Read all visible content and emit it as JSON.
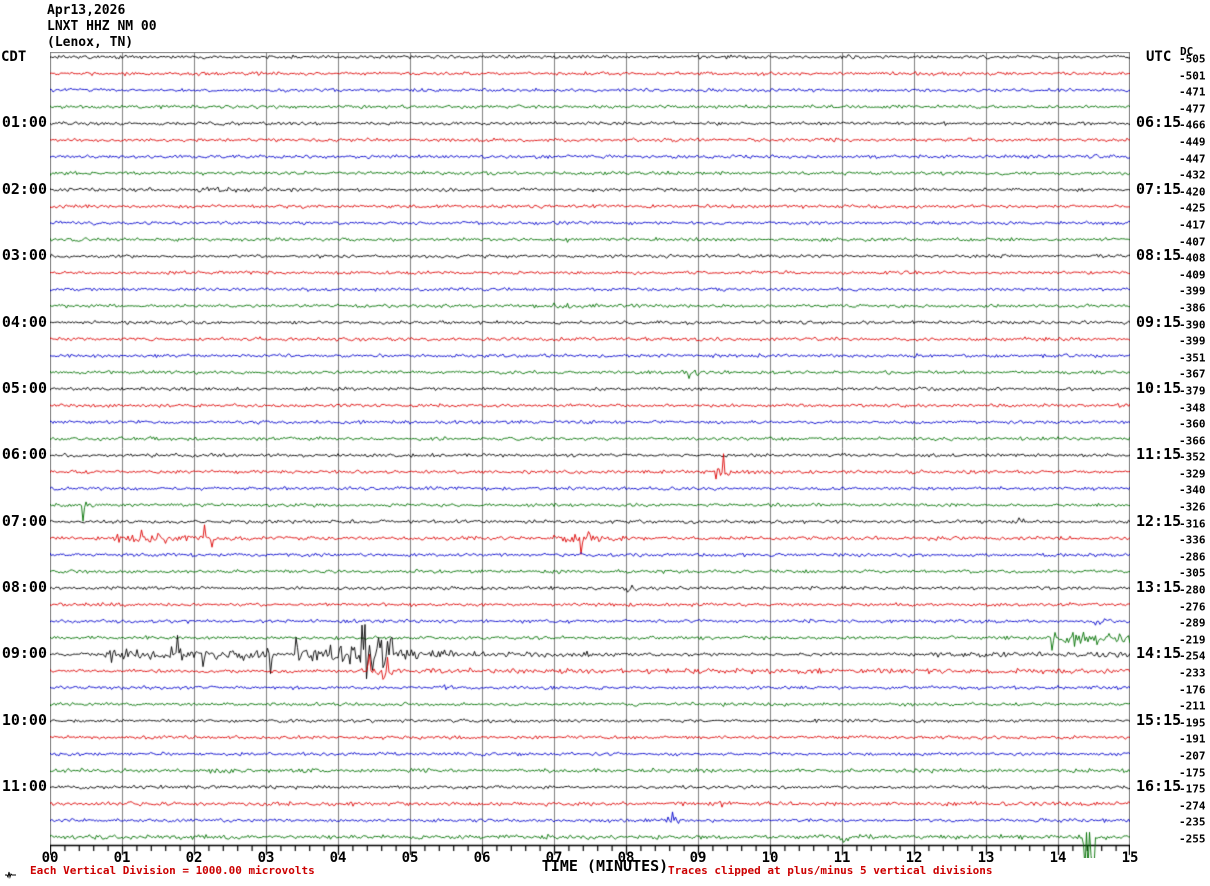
{
  "header": {
    "date": "Apr13,2026",
    "station": "LNXT HHZ NM 00",
    "location": "(Lenox, TN)"
  },
  "axes": {
    "left_header": "CDT",
    "right_header": "UTC",
    "dc_header": "DC",
    "bottom_title": "TIME (MINUTES)",
    "minute_labels": [
      "00",
      "01",
      "02",
      "03",
      "04",
      "05",
      "06",
      "07",
      "08",
      "09",
      "10",
      "11",
      "12",
      "13",
      "14",
      "15"
    ],
    "minor_ticks_per_minute": 5
  },
  "footer": {
    "scale_note": "Each Vertical Division = 1000.00 microvolts",
    "clip_note": "Traces clipped at plus/minus 5 vertical divisions"
  },
  "colors": {
    "black": "#000000",
    "red": "#dd0000",
    "blue": "#0000cc",
    "green": "#007000",
    "grid": "#808080",
    "axis_line": "#000000",
    "annotation_red": "#cc0000",
    "background": "#ffffff"
  },
  "chart_data": {
    "type": "line",
    "subtype": "helicorder-seismogram",
    "title": "LNXT HHZ NM 00 (Lenox, TN) Apr13,2026",
    "xlabel": "TIME (MINUTES)",
    "x_range_minutes": [
      0,
      15
    ],
    "minutes_per_row": 15,
    "rows_total": 48,
    "color_cycle": [
      "black",
      "red",
      "blue",
      "green"
    ],
    "rows": [
      {
        "c": "black",
        "dc": -505
      },
      {
        "c": "red",
        "dc": -501
      },
      {
        "c": "blue",
        "dc": -471
      },
      {
        "c": "green",
        "dc": -477
      },
      {
        "c": "black",
        "dc": -466,
        "cdt": "01:00",
        "utc": "06:15"
      },
      {
        "c": "red",
        "dc": -449
      },
      {
        "c": "blue",
        "dc": -447
      },
      {
        "c": "green",
        "dc": -432
      },
      {
        "c": "black",
        "dc": -420,
        "cdt": "02:00",
        "utc": "07:15",
        "ev": [
          [
            2.0,
            3.2,
            1.6
          ]
        ]
      },
      {
        "c": "red",
        "dc": -425
      },
      {
        "c": "blue",
        "dc": -417
      },
      {
        "c": "green",
        "dc": -407,
        "ev": [
          [
            7.05,
            7.2,
            2.0
          ]
        ]
      },
      {
        "c": "black",
        "dc": -408,
        "cdt": "03:00",
        "utc": "08:15"
      },
      {
        "c": "red",
        "dc": -409
      },
      {
        "c": "blue",
        "dc": -399
      },
      {
        "c": "green",
        "dc": -386,
        "ev": [
          [
            7.0,
            7.25,
            2.5
          ]
        ]
      },
      {
        "c": "black",
        "dc": -390,
        "cdt": "04:00",
        "utc": "09:15"
      },
      {
        "c": "red",
        "dc": -399,
        "a": 1.1
      },
      {
        "c": "blue",
        "dc": -351
      },
      {
        "c": "green",
        "dc": -367,
        "ev": [
          [
            8.75,
            9.0,
            2.2
          ]
        ]
      },
      {
        "c": "black",
        "dc": -379,
        "cdt": "05:00",
        "utc": "10:15"
      },
      {
        "c": "red",
        "dc": -348
      },
      {
        "c": "blue",
        "dc": -360
      },
      {
        "c": "green",
        "dc": -366
      },
      {
        "c": "black",
        "dc": -352,
        "cdt": "06:00",
        "utc": "11:15"
      },
      {
        "c": "red",
        "dc": -329,
        "ev": [
          [
            9.25,
            9.45,
            2.2
          ]
        ]
      },
      {
        "c": "blue",
        "dc": -340
      },
      {
        "c": "green",
        "dc": -326,
        "ev": [
          [
            0.45,
            0.62,
            2.5
          ]
        ]
      },
      {
        "c": "black",
        "dc": -316,
        "cdt": "07:00",
        "utc": "12:15",
        "ev": [
          [
            13.4,
            13.6,
            1.8
          ]
        ]
      },
      {
        "c": "red",
        "dc": -336,
        "a": 1.1,
        "ev": [
          [
            0.9,
            2.3,
            2.0
          ],
          [
            7.0,
            8.0,
            2.6
          ]
        ]
      },
      {
        "c": "blue",
        "dc": -286
      },
      {
        "c": "green",
        "dc": -305
      },
      {
        "c": "black",
        "dc": -280,
        "cdt": "08:00",
        "utc": "13:15",
        "ev": [
          [
            7.9,
            8.15,
            2.0
          ]
        ]
      },
      {
        "c": "red",
        "dc": -276
      },
      {
        "c": "blue",
        "dc": -289,
        "ev": [
          [
            14.5,
            14.65,
            2.2
          ]
        ]
      },
      {
        "c": "green",
        "dc": -219,
        "ev": [
          [
            13.9,
            15.0,
            3.5
          ]
        ]
      },
      {
        "c": "black",
        "dc": -254,
        "cdt": "09:00",
        "utc": "14:15",
        "ev": [
          [
            0.75,
            3.1,
            3.0
          ],
          [
            3.4,
            4.1,
            4.5
          ],
          [
            4.15,
            4.75,
            7.0
          ],
          [
            4.8,
            5.6,
            3.0
          ],
          [
            5.6,
            8.0,
            1.5
          ],
          [
            12.2,
            15.0,
            1.7
          ]
        ]
      },
      {
        "c": "red",
        "dc": -233,
        "ev": [
          [
            4.3,
            4.75,
            4.5
          ],
          [
            4.8,
            15.0,
            1.5
          ]
        ]
      },
      {
        "c": "blue",
        "dc": -176,
        "ev": [
          [
            5.45,
            5.6,
            2.5
          ]
        ]
      },
      {
        "c": "green",
        "dc": -211
      },
      {
        "c": "black",
        "dc": -195,
        "cdt": "10:00",
        "utc": "15:15"
      },
      {
        "c": "red",
        "dc": -191
      },
      {
        "c": "blue",
        "dc": -207
      },
      {
        "c": "green",
        "dc": -175,
        "a": 1.2
      },
      {
        "c": "black",
        "dc": -175,
        "cdt": "11:00",
        "utc": "16:15"
      },
      {
        "c": "red",
        "dc": -274,
        "a": 1.15,
        "ev": [
          [
            9.2,
            9.4,
            2.2
          ]
        ]
      },
      {
        "c": "blue",
        "dc": -235,
        "ev": [
          [
            8.55,
            8.75,
            2.0
          ]
        ]
      },
      {
        "c": "green",
        "dc": -255,
        "a": 1.3,
        "ev": [
          [
            10.95,
            11.1,
            2.0
          ],
          [
            14.35,
            14.5,
            7.0
          ]
        ]
      }
    ]
  }
}
